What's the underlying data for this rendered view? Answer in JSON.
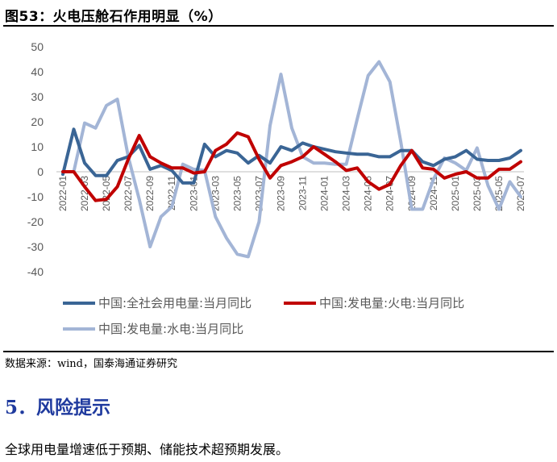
{
  "figure_title": "图53：火电压舱石作用明显（%）",
  "source": "数据来源：wind，国泰海通证券研究",
  "section_heading": "5．风险提示",
  "risk_text": "全球用电量增速低于预期、储能技术超预期发展。",
  "chart_data": {
    "type": "line",
    "title": "",
    "xlabel": "",
    "ylabel": "",
    "ylim": [
      -40,
      50
    ],
    "yticks": [
      50,
      40,
      30,
      20,
      10,
      0,
      -10,
      -20,
      -30,
      -40
    ],
    "grid": "none",
    "legend_position": "bottom",
    "x": [
      "2022-01",
      "2022-02",
      "2022-03",
      "2022-04",
      "2022-05",
      "2022-06",
      "2022-07",
      "2022-08",
      "2022-09",
      "2022-10",
      "2022-11",
      "2022-12",
      "2023-01",
      "2023-02",
      "2023-03",
      "2023-04",
      "2023-05",
      "2023-06",
      "2023-07",
      "2023-08",
      "2023-09",
      "2023-10",
      "2023-11",
      "2023-12",
      "2024-01",
      "2024-02",
      "2024-03",
      "2024-04",
      "2024-05",
      "2024-06",
      "2024-07",
      "2024-08",
      "2024-09",
      "2024-10",
      "2024-11",
      "2024-12",
      "2025-01",
      "2025-02",
      "2025-03",
      "2025-04",
      "2025-05",
      "2025-06",
      "2025-07"
    ],
    "x_tick_labels": [
      "2022-01",
      "2022-03",
      "2022-05",
      "2022-07",
      "2022-09",
      "2022-11",
      "2023-01",
      "2023-03",
      "2023-05",
      "2023-07",
      "2023-09",
      "2023-11",
      "2024-01",
      "2024-03",
      "2024-05",
      "2024-07",
      "2024-09",
      "2024-11",
      "2025-01",
      "2025-03",
      "2025-05",
      "2025-07"
    ],
    "series": [
      {
        "name": "中国:全社会用电量:当月同比",
        "color": "#3a6595",
        "values": [
          -1,
          17,
          3.5,
          -1.5,
          -1.5,
          4.5,
          6,
          10.5,
          1,
          2.5,
          0.5,
          -4.5,
          -4.5,
          11,
          6,
          8.5,
          7.5,
          3.5,
          6.5,
          3.5,
          10,
          8.5,
          11.5,
          10,
          9,
          8,
          7.5,
          7,
          7,
          6,
          6,
          8.5,
          8.5,
          4,
          2.5,
          5,
          6,
          8.5,
          5,
          4.5,
          4.5,
          5.5,
          8.5
        ]
      },
      {
        "name": "中国:发电量:火电:当月同比",
        "color": "#c00000",
        "values": [
          0,
          0,
          -6,
          -11.5,
          -11,
          -6,
          5,
          14.5,
          6,
          3.5,
          1.5,
          1.5,
          -0.5,
          0,
          8.5,
          11,
          15.5,
          14,
          5,
          -2.5,
          2.5,
          4,
          6,
          10,
          7,
          4,
          0.5,
          1.5,
          -4,
          -7,
          -5,
          2.5,
          8.5,
          1.5,
          1,
          -2.5,
          -1,
          0,
          -2.5,
          -2.5,
          1,
          1,
          4
        ]
      },
      {
        "name": "中国:发电量:水电:当月同比",
        "color": "#a3b5d6",
        "values": [
          0,
          0,
          19.5,
          17.5,
          26.5,
          29,
          6,
          -11,
          -30,
          -18,
          -14,
          3,
          1,
          0.5,
          -18,
          -26.5,
          -33,
          -34,
          -20,
          18.5,
          39,
          17.5,
          6,
          3.5,
          3.5,
          3,
          3,
          21,
          38.5,
          44,
          36,
          12,
          -15,
          -15,
          -3,
          5.5,
          3.5,
          0.5,
          9.5,
          -5.5,
          -15,
          -4,
          -10
        ]
      }
    ]
  }
}
